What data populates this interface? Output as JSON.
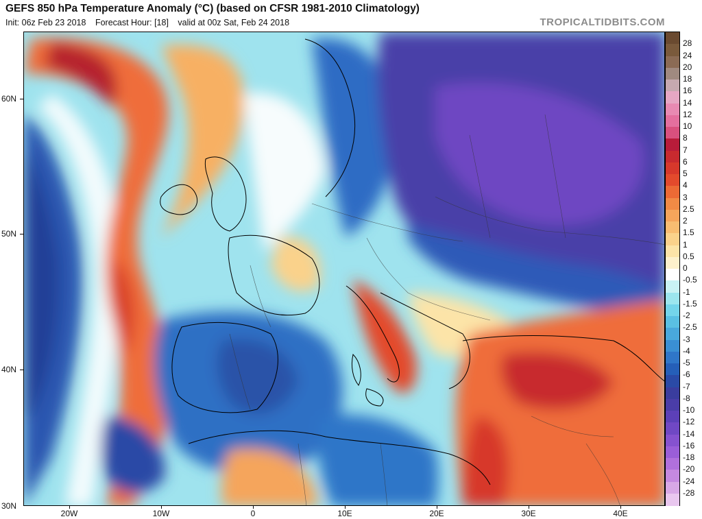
{
  "header": {
    "title": "GEFS 850 hPa Temperature Anomaly (°C) (based on CFSR 1981-2010 Climatology)",
    "init": "Init: 06z Feb 23 2018",
    "forecast_hour": "Forecast Hour: [18]",
    "valid": "valid at 00z Sat, Feb 24 2018",
    "watermark": "TROPICALTIDBITS.COM"
  },
  "map": {
    "lat_labels": [
      "60N",
      "50N",
      "40N",
      "30N"
    ],
    "lon_labels": [
      "20W",
      "10W",
      "0",
      "10E",
      "20E",
      "30E",
      "40E"
    ]
  },
  "colorbar": {
    "labels": [
      "28",
      "24",
      "20",
      "18",
      "16",
      "14",
      "12",
      "10",
      "8",
      "7",
      "6",
      "5",
      "4",
      "3",
      "2.5",
      "2",
      "1.5",
      "1",
      "0.5",
      "0",
      "-0.5",
      "-1",
      "-1.5",
      "-2",
      "-2.5",
      "-3",
      "-4",
      "-5",
      "-6",
      "-7",
      "-8",
      "-10",
      "-12",
      "-14",
      "-16",
      "-18",
      "-20",
      "-24",
      "-28"
    ],
    "colors": [
      "#7a5a3c",
      "#8b6b55",
      "#a08a80",
      "#c6a9b0",
      "#e6a7c3",
      "#e88ab2",
      "#e46f9e",
      "#d9507e",
      "#b81c3a",
      "#c82a2f",
      "#d7382b",
      "#e34a2c",
      "#ec6a35",
      "#f18a45",
      "#f5a55b",
      "#f8bd71",
      "#fad28b",
      "#fce4a8",
      "#fdf1cc",
      "#ffffff",
      "#c9f3f4",
      "#9ce6ee",
      "#74d5ea",
      "#5ac0e3",
      "#49a8dc",
      "#3a8fd3",
      "#2f76c8",
      "#255fb8",
      "#2a4aa6",
      "#3a3d9e",
      "#4a3da8",
      "#5c40b8",
      "#7048c4",
      "#8652cf",
      "#9a5ed8",
      "#b070dc",
      "#c589e0",
      "#d8a8e6",
      "#e9c7ef"
    ],
    "top_color": "#6a4a30"
  }
}
